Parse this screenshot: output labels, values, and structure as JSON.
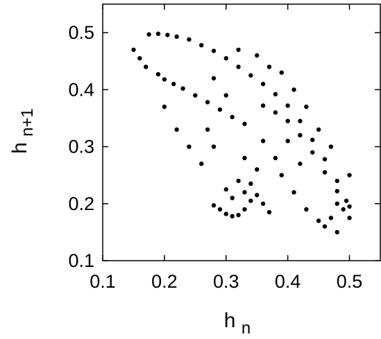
{
  "chart_data": {
    "type": "scatter",
    "title": "",
    "xlabel": "h",
    "xlabel_subscript": "n",
    "ylabel": "h",
    "ylabel_subscript": "n+1",
    "xlim": [
      0.1,
      0.55
    ],
    "ylim": [
      0.1,
      0.55
    ],
    "x_ticks": [
      0.1,
      0.2,
      0.3,
      0.4,
      0.5
    ],
    "x_tick_labels": [
      "0.1",
      "0.2",
      "0.3",
      "0.4",
      "0.5"
    ],
    "y_ticks": [
      0.1,
      0.2,
      0.3,
      0.4,
      0.5
    ],
    "y_tick_labels": [
      "0.1",
      "0.2",
      "0.3",
      "0.4",
      "0.5"
    ],
    "grid": false,
    "legend": "none",
    "marker_color": "#000000",
    "series": [
      {
        "values": [
          {
            "x": 0.175,
            "y": 0.497
          },
          {
            "x": 0.19,
            "y": 0.498
          },
          {
            "x": 0.205,
            "y": 0.496
          },
          {
            "x": 0.22,
            "y": 0.493
          },
          {
            "x": 0.24,
            "y": 0.488
          },
          {
            "x": 0.26,
            "y": 0.478
          },
          {
            "x": 0.28,
            "y": 0.468
          },
          {
            "x": 0.3,
            "y": 0.455
          },
          {
            "x": 0.32,
            "y": 0.44
          },
          {
            "x": 0.34,
            "y": 0.425
          },
          {
            "x": 0.36,
            "y": 0.41
          },
          {
            "x": 0.38,
            "y": 0.392
          },
          {
            "x": 0.4,
            "y": 0.372
          },
          {
            "x": 0.42,
            "y": 0.345
          },
          {
            "x": 0.44,
            "y": 0.312
          },
          {
            "x": 0.46,
            "y": 0.278
          },
          {
            "x": 0.48,
            "y": 0.24
          },
          {
            "x": 0.495,
            "y": 0.205
          },
          {
            "x": 0.5,
            "y": 0.195
          },
          {
            "x": 0.19,
            "y": 0.427
          },
          {
            "x": 0.2,
            "y": 0.418
          },
          {
            "x": 0.215,
            "y": 0.41
          },
          {
            "x": 0.23,
            "y": 0.402
          },
          {
            "x": 0.25,
            "y": 0.39
          },
          {
            "x": 0.27,
            "y": 0.378
          },
          {
            "x": 0.29,
            "y": 0.365
          },
          {
            "x": 0.31,
            "y": 0.352
          },
          {
            "x": 0.33,
            "y": 0.34
          },
          {
            "x": 0.36,
            "y": 0.372
          },
          {
            "x": 0.38,
            "y": 0.36
          },
          {
            "x": 0.4,
            "y": 0.345
          },
          {
            "x": 0.42,
            "y": 0.32
          },
          {
            "x": 0.44,
            "y": 0.29
          },
          {
            "x": 0.46,
            "y": 0.255
          },
          {
            "x": 0.48,
            "y": 0.222
          },
          {
            "x": 0.28,
            "y": 0.197
          },
          {
            "x": 0.29,
            "y": 0.19
          },
          {
            "x": 0.3,
            "y": 0.182
          },
          {
            "x": 0.31,
            "y": 0.178
          },
          {
            "x": 0.32,
            "y": 0.18
          },
          {
            "x": 0.33,
            "y": 0.19
          },
          {
            "x": 0.34,
            "y": 0.205
          },
          {
            "x": 0.35,
            "y": 0.215
          },
          {
            "x": 0.36,
            "y": 0.2
          },
          {
            "x": 0.3,
            "y": 0.225
          },
          {
            "x": 0.32,
            "y": 0.24
          },
          {
            "x": 0.34,
            "y": 0.235
          },
          {
            "x": 0.31,
            "y": 0.21
          },
          {
            "x": 0.33,
            "y": 0.22
          },
          {
            "x": 0.37,
            "y": 0.185
          },
          {
            "x": 0.49,
            "y": 0.19
          },
          {
            "x": 0.48,
            "y": 0.2
          },
          {
            "x": 0.47,
            "y": 0.175
          },
          {
            "x": 0.46,
            "y": 0.16
          },
          {
            "x": 0.48,
            "y": 0.15
          },
          {
            "x": 0.5,
            "y": 0.175
          },
          {
            "x": 0.15,
            "y": 0.47
          },
          {
            "x": 0.16,
            "y": 0.455
          },
          {
            "x": 0.17,
            "y": 0.44
          },
          {
            "x": 0.2,
            "y": 0.37
          },
          {
            "x": 0.22,
            "y": 0.33
          },
          {
            "x": 0.24,
            "y": 0.3
          },
          {
            "x": 0.26,
            "y": 0.27
          },
          {
            "x": 0.28,
            "y": 0.3
          },
          {
            "x": 0.27,
            "y": 0.33
          },
          {
            "x": 0.3,
            "y": 0.39
          },
          {
            "x": 0.28,
            "y": 0.42
          },
          {
            "x": 0.32,
            "y": 0.47
          },
          {
            "x": 0.35,
            "y": 0.46
          },
          {
            "x": 0.37,
            "y": 0.44
          },
          {
            "x": 0.39,
            "y": 0.43
          },
          {
            "x": 0.41,
            "y": 0.4
          },
          {
            "x": 0.43,
            "y": 0.37
          },
          {
            "x": 0.45,
            "y": 0.33
          },
          {
            "x": 0.47,
            "y": 0.3
          },
          {
            "x": 0.5,
            "y": 0.25
          },
          {
            "x": 0.39,
            "y": 0.25
          },
          {
            "x": 0.41,
            "y": 0.22
          },
          {
            "x": 0.43,
            "y": 0.19
          },
          {
            "x": 0.45,
            "y": 0.17
          },
          {
            "x": 0.38,
            "y": 0.28
          },
          {
            "x": 0.36,
            "y": 0.31
          },
          {
            "x": 0.33,
            "y": 0.28
          },
          {
            "x": 0.35,
            "y": 0.26
          },
          {
            "x": 0.4,
            "y": 0.31
          },
          {
            "x": 0.42,
            "y": 0.27
          }
        ]
      }
    ]
  }
}
